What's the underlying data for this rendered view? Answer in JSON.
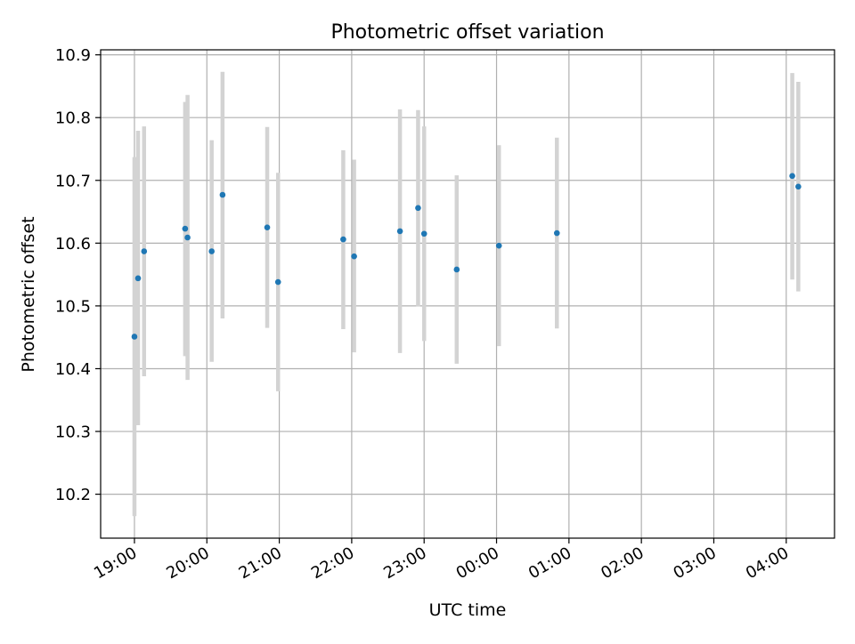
{
  "chart_data": {
    "type": "scatter",
    "title": "Photometric offset variation",
    "xlabel": "UTC time",
    "ylabel": "Photometric offset",
    "grid": true,
    "xlim": [
      "18:32",
      "04:40"
    ],
    "ylim": [
      10.13,
      10.908
    ],
    "x_ticks": [
      "19:00",
      "20:00",
      "21:00",
      "22:00",
      "23:00",
      "00:00",
      "01:00",
      "02:00",
      "03:00",
      "04:00"
    ],
    "y_ticks": [
      10.2,
      10.3,
      10.4,
      10.5,
      10.6,
      10.7,
      10.8,
      10.9
    ],
    "y_tick_labels": [
      "10.2",
      "10.3",
      "10.4",
      "10.5",
      "10.6",
      "10.7",
      "10.8",
      "10.9"
    ],
    "marker_color": "#1f77b4",
    "errorbar_color": "#d3d3d3",
    "points": [
      {
        "t": "19:00",
        "y": 10.451,
        "lo": 10.165,
        "hi": 10.737
      },
      {
        "t": "19:03",
        "y": 10.544,
        "lo": 10.31,
        "hi": 10.779
      },
      {
        "t": "19:08",
        "y": 10.587,
        "lo": 10.388,
        "hi": 10.786
      },
      {
        "t": "19:42",
        "y": 10.623,
        "lo": 10.42,
        "hi": 10.825
      },
      {
        "t": "19:44",
        "y": 10.609,
        "lo": 10.382,
        "hi": 10.836
      },
      {
        "t": "20:04",
        "y": 10.587,
        "lo": 10.411,
        "hi": 10.764
      },
      {
        "t": "20:13",
        "y": 10.677,
        "lo": 10.48,
        "hi": 10.873
      },
      {
        "t": "20:50",
        "y": 10.625,
        "lo": 10.465,
        "hi": 10.785
      },
      {
        "t": "20:59",
        "y": 10.538,
        "lo": 10.364,
        "hi": 10.712
      },
      {
        "t": "21:53",
        "y": 10.606,
        "lo": 10.463,
        "hi": 10.748
      },
      {
        "t": "22:02",
        "y": 10.579,
        "lo": 10.426,
        "hi": 10.733
      },
      {
        "t": "22:40",
        "y": 10.619,
        "lo": 10.425,
        "hi": 10.813
      },
      {
        "t": "22:55",
        "y": 10.656,
        "lo": 10.499,
        "hi": 10.812
      },
      {
        "t": "23:00",
        "y": 10.615,
        "lo": 10.444,
        "hi": 10.786
      },
      {
        "t": "23:27",
        "y": 10.558,
        "lo": 10.408,
        "hi": 10.708
      },
      {
        "t": "00:02",
        "y": 10.596,
        "lo": 10.436,
        "hi": 10.756
      },
      {
        "t": "00:50",
        "y": 10.616,
        "lo": 10.464,
        "hi": 10.768
      },
      {
        "t": "04:05",
        "y": 10.707,
        "lo": 10.542,
        "hi": 10.871
      },
      {
        "t": "04:10",
        "y": 10.69,
        "lo": 10.523,
        "hi": 10.857
      }
    ]
  }
}
